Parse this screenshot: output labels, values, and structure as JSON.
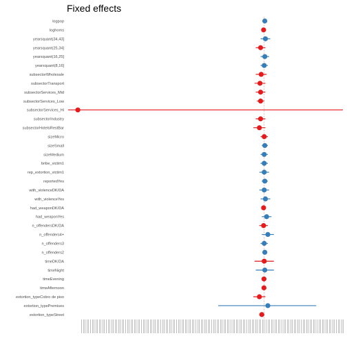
{
  "chart_data": {
    "type": "scatter",
    "subtype": "forest-plot",
    "title": "Fixed effects",
    "xlabel": "",
    "ylabel": "",
    "xlim": [
      -1.62,
      0.65
    ],
    "reference_line": 0,
    "x_tick_labels": "illegible (densely overlapping, rotated)",
    "colors": {
      "positive": "#377eb8",
      "negative": "#e41a1c",
      "reference": "#e8a0a0"
    },
    "terms": [
      {
        "label": "logpop",
        "estimate": 0.005,
        "ci": [
          -0.015,
          0.025
        ],
        "sign": "positive"
      },
      {
        "label": "loghoms",
        "estimate": -0.005,
        "ci": [
          -0.02,
          0.01
        ],
        "sign": "negative"
      },
      {
        "label": "yearsquant(34,43]",
        "estimate": 0.01,
        "ci": [
          -0.03,
          0.05
        ],
        "sign": "positive"
      },
      {
        "label": "yearsquant(25,34]",
        "estimate": -0.03,
        "ci": [
          -0.07,
          0.01
        ],
        "sign": "negative"
      },
      {
        "label": "yearsquant(16,25]",
        "estimate": 0.005,
        "ci": [
          -0.03,
          0.04
        ],
        "sign": "positive"
      },
      {
        "label": "yearsquant(8,16]",
        "estimate": 0.0,
        "ci": [
          -0.03,
          0.03
        ],
        "sign": "positive"
      },
      {
        "label": "subsectorWholesale",
        "estimate": -0.025,
        "ci": [
          -0.07,
          0.02
        ],
        "sign": "negative"
      },
      {
        "label": "subsectorTransport",
        "estimate": -0.035,
        "ci": [
          -0.08,
          0.01
        ],
        "sign": "negative"
      },
      {
        "label": "subsectorServices_Mid",
        "estimate": -0.03,
        "ci": [
          -0.07,
          0.01
        ],
        "sign": "negative"
      },
      {
        "label": "subsectorServices_Low",
        "estimate": -0.03,
        "ci": [
          -0.06,
          0.0
        ],
        "sign": "negative"
      },
      {
        "label": "subsectorServices_Hi",
        "estimate": -1.54,
        "ci": [
          -1.62,
          0.65
        ],
        "sign": "negative"
      },
      {
        "label": "subsectorIndustry",
        "estimate": -0.03,
        "ci": [
          -0.07,
          0.01
        ],
        "sign": "negative"
      },
      {
        "label": "subsectorHotelsRestBar",
        "estimate": -0.04,
        "ci": [
          -0.09,
          0.01
        ],
        "sign": "negative"
      },
      {
        "label": "sizeMicro",
        "estimate": 0.0,
        "ci": [
          -0.03,
          0.03
        ],
        "sign": "negative"
      },
      {
        "label": "sizeSmall",
        "estimate": 0.005,
        "ci": [
          -0.02,
          0.03
        ],
        "sign": "positive"
      },
      {
        "label": "sizeMedium",
        "estimate": 0.0,
        "ci": [
          -0.03,
          0.03
        ],
        "sign": "positive"
      },
      {
        "label": "bribe_victim1",
        "estimate": 0.0,
        "ci": [
          -0.03,
          0.03
        ],
        "sign": "positive"
      },
      {
        "label": "rep_extortion_victim1",
        "estimate": 0.0,
        "ci": [
          -0.04,
          0.04
        ],
        "sign": "positive"
      },
      {
        "label": "reportedYes",
        "estimate": 0.005,
        "ci": [
          -0.02,
          0.03
        ],
        "sign": "positive"
      },
      {
        "label": "with_violenceDK/DA",
        "estimate": 0.0,
        "ci": [
          -0.04,
          0.04
        ],
        "sign": "positive"
      },
      {
        "label": "with_violenceYes",
        "estimate": 0.01,
        "ci": [
          -0.03,
          0.05
        ],
        "sign": "positive"
      },
      {
        "label": "had_weaponDK/DA",
        "estimate": -0.005,
        "ci": [
          -0.02,
          0.01
        ],
        "sign": "negative"
      },
      {
        "label": "had_weaponYes",
        "estimate": 0.02,
        "ci": [
          -0.02,
          0.06
        ],
        "sign": "positive"
      },
      {
        "label": "n_offendersDK/DA",
        "estimate": -0.005,
        "ci": [
          -0.04,
          0.03
        ],
        "sign": "negative"
      },
      {
        "label": "n_offenders4+",
        "estimate": 0.03,
        "ci": [
          -0.02,
          0.08
        ],
        "sign": "positive"
      },
      {
        "label": "n_offenders3",
        "estimate": 0.0,
        "ci": [
          -0.03,
          0.03
        ],
        "sign": "positive"
      },
      {
        "label": "n_offenders2",
        "estimate": 0.005,
        "ci": [
          -0.015,
          0.025
        ],
        "sign": "positive"
      },
      {
        "label": "timeDK/DA",
        "estimate": 0.0,
        "ci": [
          -0.08,
          0.08
        ],
        "sign": "negative"
      },
      {
        "label": "timeNight",
        "estimate": 0.005,
        "ci": [
          -0.07,
          0.08
        ],
        "sign": "positive"
      },
      {
        "label": "timeEvening",
        "estimate": -0.002,
        "ci": [
          -0.02,
          0.015
        ],
        "sign": "negative"
      },
      {
        "label": "timeAfternoon",
        "estimate": -0.002,
        "ci": [
          -0.02,
          0.015
        ],
        "sign": "negative"
      },
      {
        "label": "extortion_typeCobro de piso",
        "estimate": -0.04,
        "ci": [
          -0.09,
          0.01
        ],
        "sign": "negative"
      },
      {
        "label": "extortion_typePremises",
        "estimate": 0.03,
        "ci": [
          -0.38,
          0.43
        ],
        "sign": "positive"
      },
      {
        "label": "extortion_typeStreet",
        "estimate": -0.02,
        "ci": [
          -0.04,
          0.0
        ],
        "sign": "negative"
      }
    ]
  }
}
